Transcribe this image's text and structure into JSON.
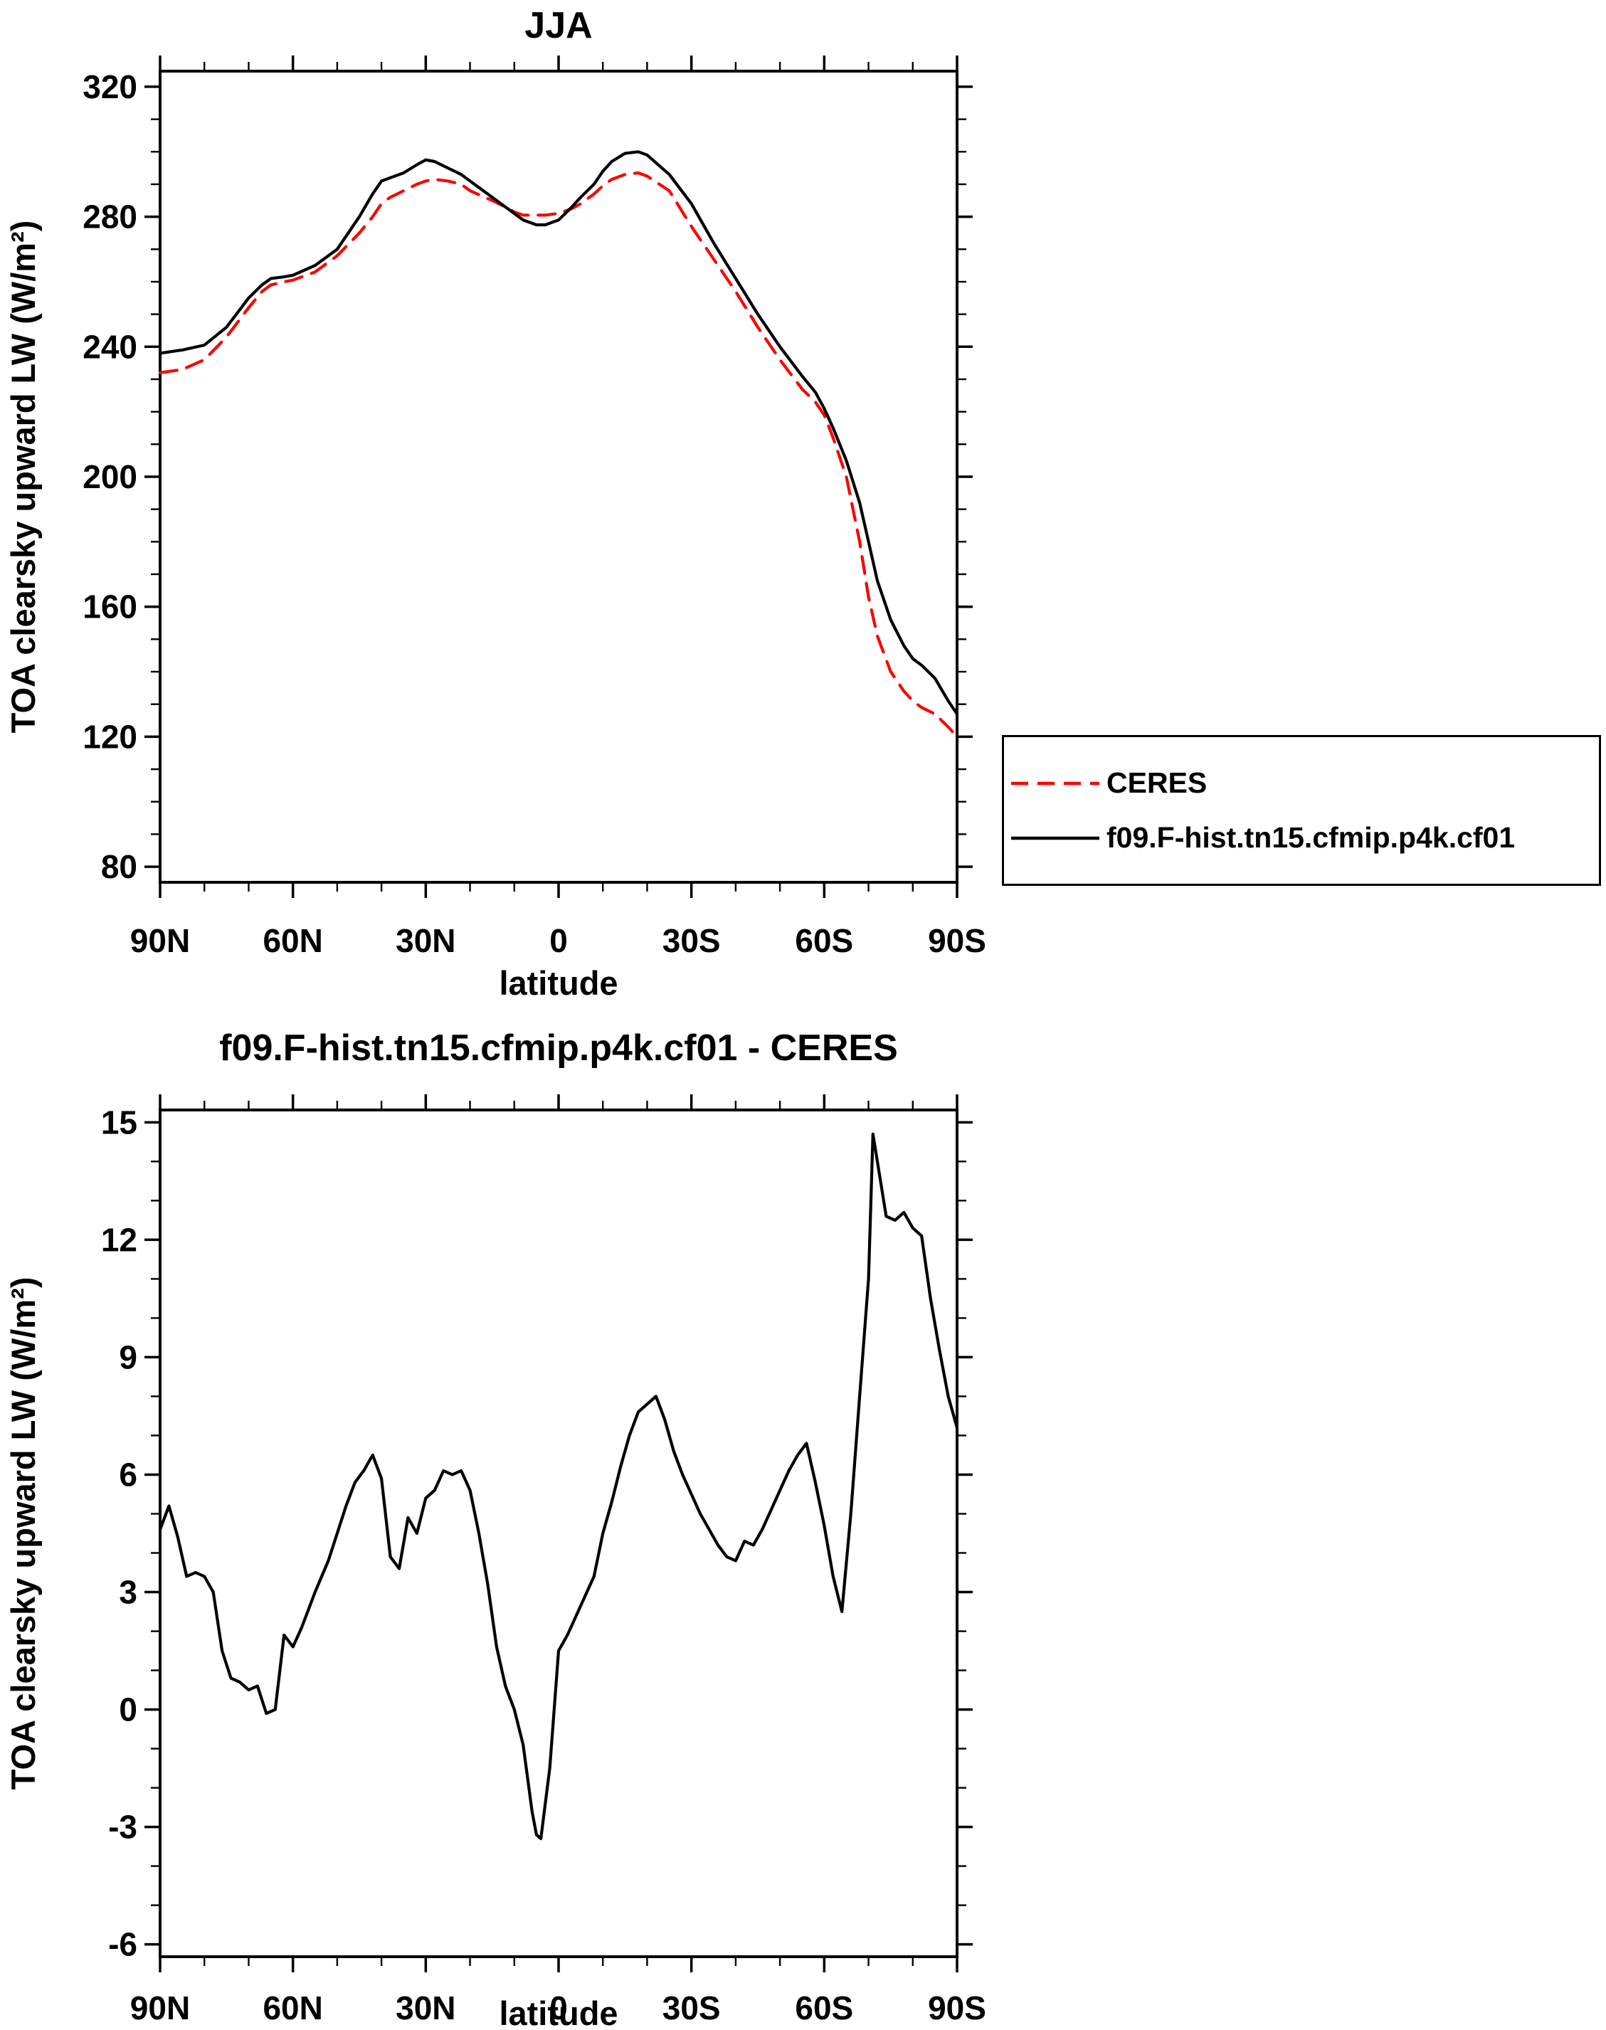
{
  "figure": {
    "background": "#ffffff",
    "accent_red": "#ff0000",
    "line_black": "#000000"
  },
  "chart_data": [
    {
      "type": "line",
      "title": "JJA",
      "xlabel": "latitude",
      "ylabel": "TOA clearsky upward LW (W/m²)",
      "ylim": [
        80,
        320
      ],
      "yticks": [
        80,
        120,
        160,
        200,
        240,
        280,
        320
      ],
      "xlim": [
        90,
        -90
      ],
      "xticks": [
        {
          "value": 90,
          "label": "90N"
        },
        {
          "value": 60,
          "label": "60N"
        },
        {
          "value": 30,
          "label": "30N"
        },
        {
          "value": 0,
          "label": "0"
        },
        {
          "value": -30,
          "label": "30S"
        },
        {
          "value": -60,
          "label": "60S"
        },
        {
          "value": -90,
          "label": "90S"
        }
      ],
      "grid": false,
      "legend_position": "outside-right",
      "series": [
        {
          "name": "CERES",
          "color": "#ff0000",
          "line_style": "dashed",
          "x": [
            90,
            85,
            80,
            75,
            70,
            67,
            65,
            62,
            60,
            55,
            50,
            45,
            42,
            40,
            38,
            35,
            32,
            30,
            28,
            25,
            22,
            20,
            15,
            12,
            10,
            8,
            5,
            3,
            0,
            -3,
            -5,
            -8,
            -10,
            -12,
            -15,
            -18,
            -20,
            -25,
            -30,
            -35,
            -40,
            -45,
            -50,
            -55,
            -58,
            -60,
            -62,
            -65,
            -68,
            -70,
            -72,
            -75,
            -78,
            -80,
            -82,
            -85,
            -88,
            -90
          ],
          "y": [
            232,
            233,
            236,
            243,
            252,
            257,
            259,
            260,
            260.5,
            263,
            268,
            275,
            280,
            284,
            286,
            288,
            290,
            291,
            291.5,
            291,
            290,
            288,
            285,
            283,
            281.5,
            280.5,
            280.5,
            280.5,
            281,
            282.5,
            284,
            287,
            289.5,
            291.5,
            293,
            293.5,
            292.5,
            288,
            277,
            267,
            257,
            246,
            236,
            227,
            223,
            219,
            212,
            200,
            180,
            163,
            151,
            140,
            134,
            131,
            129,
            127,
            123,
            120
          ]
        },
        {
          "name": "f09.F-hist.tn15.cfmip.p4k.cf01",
          "color": "#000000",
          "line_style": "solid",
          "x": [
            90,
            85,
            80,
            75,
            70,
            67,
            65,
            62,
            60,
            55,
            50,
            45,
            42,
            40,
            38,
            35,
            32,
            30,
            28,
            25,
            22,
            20,
            15,
            12,
            10,
            8,
            5,
            3,
            0,
            -3,
            -5,
            -8,
            -10,
            -12,
            -15,
            -18,
            -20,
            -25,
            -30,
            -35,
            -40,
            -45,
            -50,
            -55,
            -58,
            -60,
            -62,
            -65,
            -68,
            -70,
            -72,
            -75,
            -78,
            -80,
            -82,
            -85,
            -88,
            -90
          ],
          "y": [
            238,
            239,
            240.5,
            246,
            255,
            259,
            261,
            261.5,
            262,
            265,
            270,
            280,
            287,
            291,
            292,
            293.5,
            296,
            297.5,
            297,
            295,
            293,
            291,
            286,
            283,
            281,
            279,
            277.5,
            277.5,
            279,
            283,
            286,
            290,
            294,
            297,
            299.5,
            300,
            299,
            293,
            284,
            272,
            261,
            250,
            240,
            231,
            226,
            221,
            215,
            205,
            192,
            180,
            168,
            156,
            148,
            144,
            142,
            138,
            131,
            127
          ]
        }
      ]
    },
    {
      "type": "line",
      "title": "f09.F-hist.tn15.cfmip.p4k.cf01 - CERES",
      "xlabel": "latitude",
      "ylabel": "TOA clearsky upward LW (W/m²)",
      "ylim": [
        -6,
        15
      ],
      "yticks": [
        -6,
        -3,
        0,
        3,
        6,
        9,
        12,
        15
      ],
      "xlim": [
        90,
        -90
      ],
      "xticks": [
        {
          "value": 90,
          "label": "90N"
        },
        {
          "value": 60,
          "label": "60N"
        },
        {
          "value": 30,
          "label": "30N"
        },
        {
          "value": 0,
          "label": "0"
        },
        {
          "value": -30,
          "label": "30S"
        },
        {
          "value": -60,
          "label": "60S"
        },
        {
          "value": -90,
          "label": "90S"
        }
      ],
      "grid": false,
      "legend_position": "none",
      "series": [
        {
          "name": "f09.F-hist.tn15.cfmip.p4k.cf01 - CERES",
          "color": "#000000",
          "line_style": "solid",
          "x": [
            90,
            88,
            86,
            84,
            82,
            80,
            78,
            76,
            74,
            72,
            70,
            68,
            66,
            64,
            62,
            60,
            58,
            55,
            52,
            50,
            48,
            46,
            44,
            42,
            40,
            38,
            36,
            34,
            32,
            30,
            28,
            26,
            24,
            22,
            20,
            18,
            16,
            14,
            12,
            10,
            8,
            6,
            5,
            4,
            2,
            0,
            -2,
            -4,
            -6,
            -8,
            -10,
            -12,
            -14,
            -16,
            -18,
            -20,
            -22,
            -24,
            -26,
            -28,
            -30,
            -32,
            -34,
            -36,
            -38,
            -40,
            -42,
            -44,
            -46,
            -48,
            -50,
            -52,
            -54,
            -56,
            -58,
            -60,
            -62,
            -64,
            -66,
            -68,
            -70,
            -71,
            -72,
            -74,
            -76,
            -78,
            -80,
            -82,
            -84,
            -86,
            -88,
            -90
          ],
          "y": [
            4.6,
            5.2,
            4.4,
            3.4,
            3.5,
            3.4,
            3.0,
            1.5,
            0.8,
            0.7,
            0.5,
            0.6,
            -0.1,
            0.0,
            1.9,
            1.6,
            2.1,
            3.0,
            3.8,
            4.5,
            5.2,
            5.8,
            6.1,
            6.5,
            5.9,
            3.9,
            3.6,
            4.9,
            4.5,
            5.4,
            5.6,
            6.1,
            6.0,
            6.1,
            5.6,
            4.5,
            3.2,
            1.6,
            0.6,
            0.0,
            -0.9,
            -2.6,
            -3.2,
            -3.3,
            -1.5,
            1.5,
            1.9,
            2.4,
            2.9,
            3.4,
            4.5,
            5.3,
            6.2,
            7.0,
            7.6,
            7.8,
            8.0,
            7.4,
            6.6,
            6.0,
            5.5,
            5.0,
            4.6,
            4.2,
            3.9,
            3.8,
            4.3,
            4.2,
            4.6,
            5.1,
            5.6,
            6.1,
            6.5,
            6.8,
            5.8,
            4.7,
            3.4,
            2.5,
            5.0,
            8.0,
            11.0,
            14.7,
            14.0,
            12.6,
            12.5,
            12.7,
            12.3,
            12.1,
            10.5,
            9.2,
            8.0,
            7.2
          ]
        }
      ]
    }
  ]
}
